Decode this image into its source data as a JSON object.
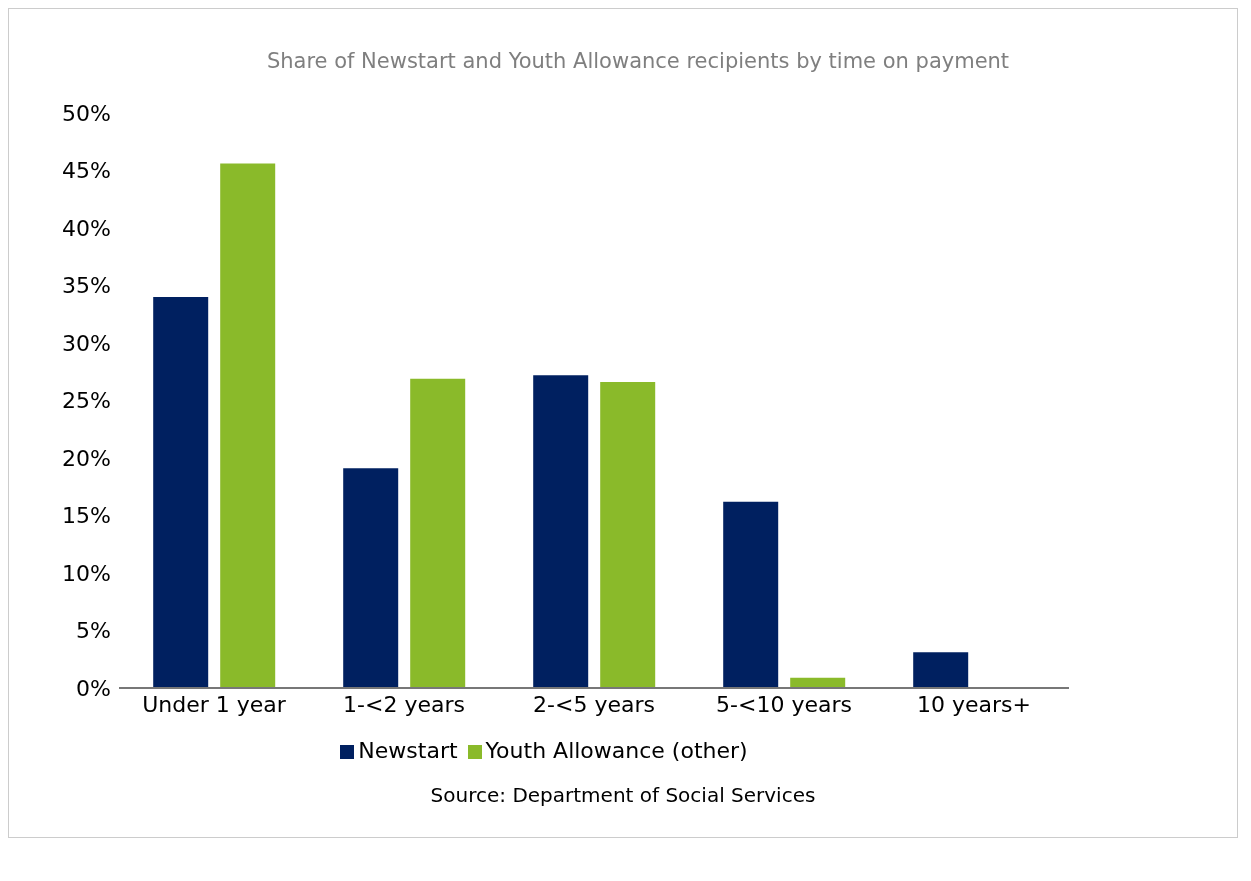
{
  "chart_data": {
    "type": "bar",
    "title": "Share of Newstart and Youth Allowance recipients by time on payment",
    "categories": [
      "Under 1 year",
      "1-<2 years",
      "2-<5 years",
      "5-<10 years",
      "10 years+"
    ],
    "series": [
      {
        "name": "Newstart",
        "color": "#002060",
        "values": [
          34.0,
          19.1,
          27.2,
          16.2,
          3.1
        ]
      },
      {
        "name": "Youth Allowance (other)",
        "color": "#8aba2a",
        "values": [
          45.6,
          26.9,
          26.6,
          0.9,
          0
        ]
      }
    ],
    "ylim": [
      0,
      50
    ],
    "yticks": [
      {
        "value": 0,
        "label": "0%"
      },
      {
        "value": 5,
        "label": "5%"
      },
      {
        "value": 10,
        "label": "10%"
      },
      {
        "value": 15,
        "label": "15%"
      },
      {
        "value": 20,
        "label": "20%"
      },
      {
        "value": 25,
        "label": "25%"
      },
      {
        "value": 30,
        "label": "30%"
      },
      {
        "value": 35,
        "label": "35%"
      },
      {
        "value": 40,
        "label": "40%"
      },
      {
        "value": 45,
        "label": "45%"
      },
      {
        "value": 50,
        "label": "50%"
      }
    ],
    "grid": false,
    "legend": "bottom",
    "annotations": [
      "Source: Department of Social Services"
    ]
  }
}
